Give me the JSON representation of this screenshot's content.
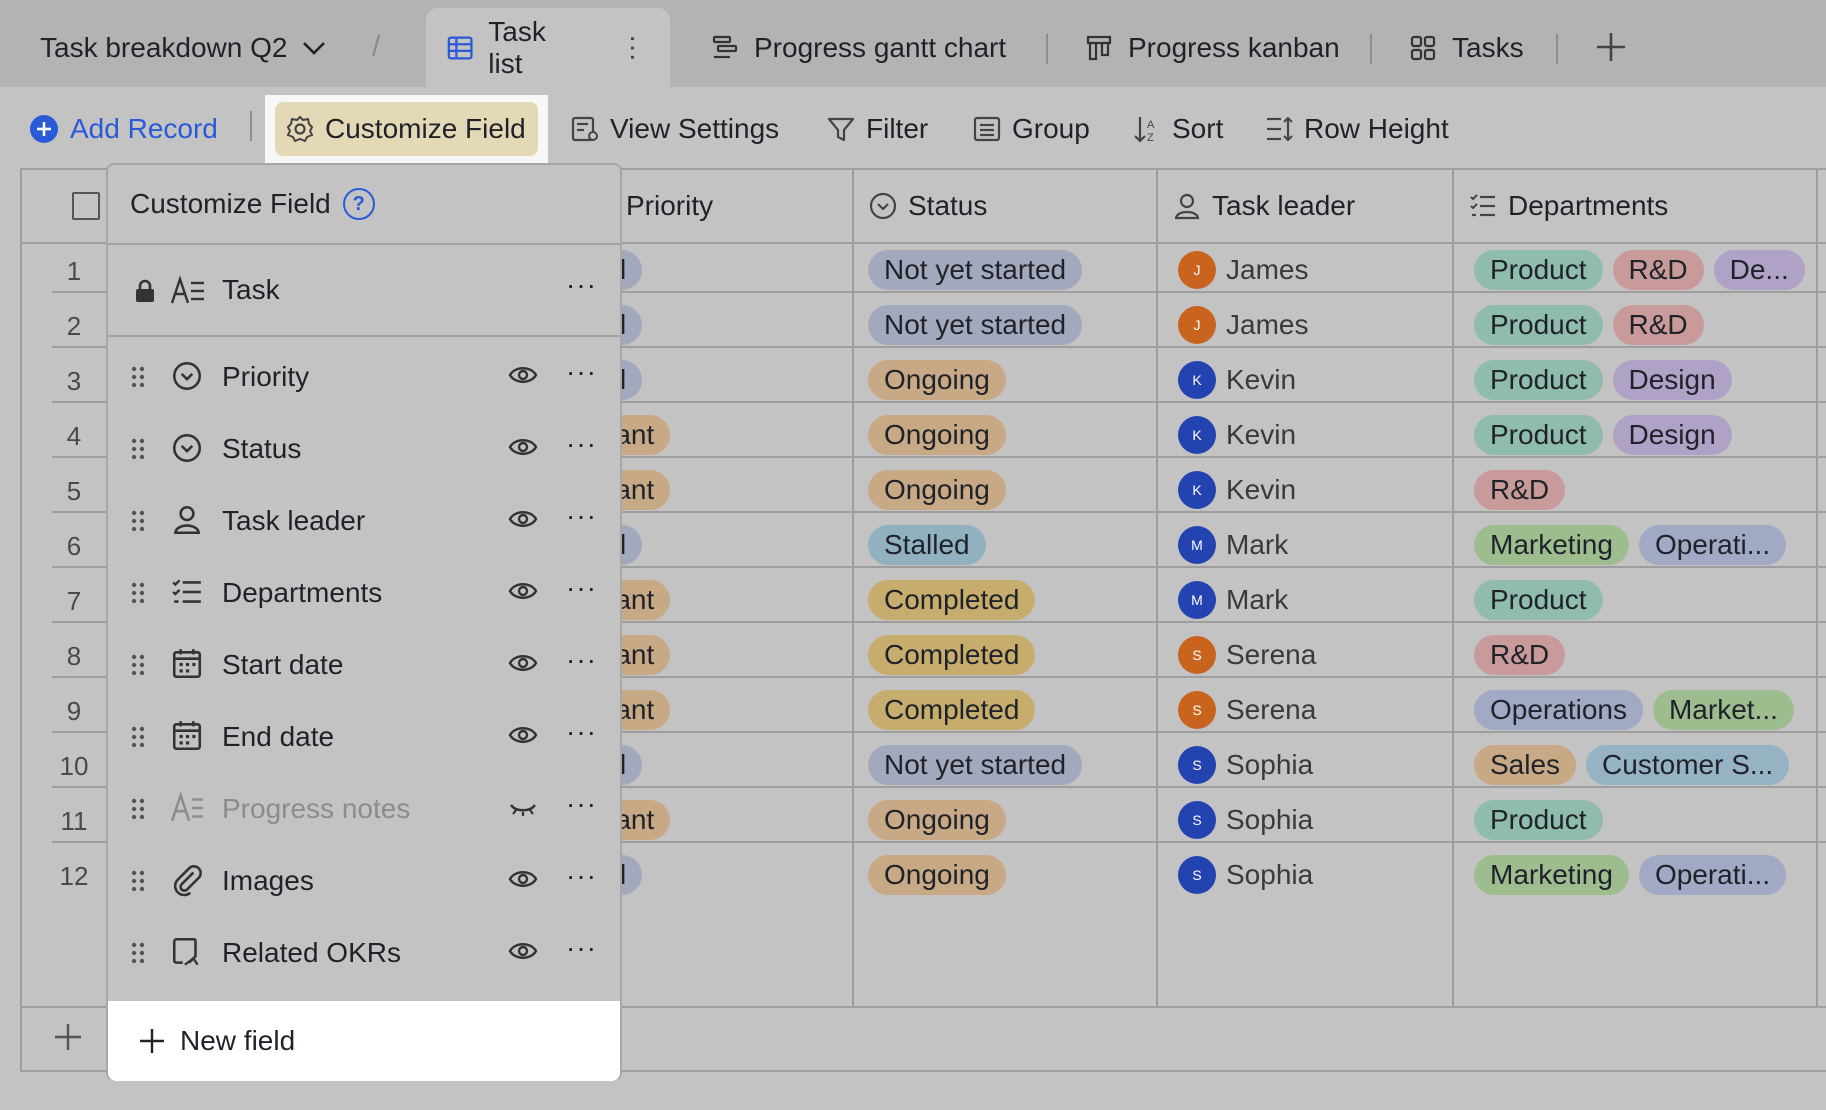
{
  "base": {
    "title": "Task breakdown Q2",
    "separator": "/"
  },
  "tabs": [
    {
      "label": "Task list",
      "icon": "grid-table-icon",
      "active": true
    },
    {
      "label": "Progress gantt chart",
      "icon": "gantt-icon"
    },
    {
      "label": "Progress kanban",
      "icon": "kanban-icon"
    },
    {
      "label": "Tasks",
      "icon": "gallery-icon"
    }
  ],
  "toolbar": {
    "add_record": "Add Record",
    "customize_field": "Customize Field",
    "view_settings": "View Settings",
    "filter": "Filter",
    "group": "Group",
    "sort": "Sort",
    "row_height": "Row Height"
  },
  "columns": {
    "priority": "Priority",
    "status": "Status",
    "task_leader": "Task leader",
    "departments": "Departments"
  },
  "rows": [
    {
      "num": "1",
      "priority": "Normal",
      "status": "Not yet started",
      "leader": "James",
      "initial": "J",
      "avatar": "#c8641e",
      "depts": [
        "Product",
        "R&D",
        "De..."
      ]
    },
    {
      "num": "2",
      "priority": "Normal",
      "status": "Not yet started",
      "leader": "James",
      "initial": "J",
      "avatar": "#c8641e",
      "depts": [
        "Product",
        "R&D"
      ]
    },
    {
      "num": "3",
      "priority": "Normal",
      "status": "Ongoing",
      "leader": "Kevin",
      "initial": "K",
      "avatar": "#2343b0",
      "depts": [
        "Product",
        "Design"
      ]
    },
    {
      "num": "4",
      "priority": "Important",
      "status": "Ongoing",
      "leader": "Kevin",
      "initial": "K",
      "avatar": "#2343b0",
      "depts": [
        "Product",
        "Design"
      ]
    },
    {
      "num": "5",
      "priority": "Important",
      "status": "Ongoing",
      "leader": "Kevin",
      "initial": "K",
      "avatar": "#2343b0",
      "depts": [
        "R&D"
      ]
    },
    {
      "num": "6",
      "priority": "Normal",
      "status": "Stalled",
      "leader": "Mark",
      "initial": "M",
      "avatar": "#2343b0",
      "depts": [
        "Marketing",
        "Operati..."
      ]
    },
    {
      "num": "7",
      "priority": "Important",
      "status": "Completed",
      "leader": "Mark",
      "initial": "M",
      "avatar": "#2343b0",
      "depts": [
        "Product"
      ]
    },
    {
      "num": "8",
      "priority": "Important",
      "status": "Completed",
      "leader": "Serena",
      "initial": "S",
      "avatar": "#c8641e",
      "depts": [
        "R&D"
      ]
    },
    {
      "num": "9",
      "priority": "Important",
      "status": "Completed",
      "leader": "Serena",
      "initial": "S",
      "avatar": "#c8641e",
      "depts": [
        "Operations",
        "Market..."
      ]
    },
    {
      "num": "10",
      "priority": "Normal",
      "status": "Not yet started",
      "leader": "Sophia",
      "initial": "S",
      "avatar": "#2343b0",
      "depts": [
        "Sales",
        "Customer S..."
      ]
    },
    {
      "num": "11",
      "priority": "Important",
      "status": "Ongoing",
      "leader": "Sophia",
      "initial": "S",
      "avatar": "#2343b0",
      "depts": [
        "Product"
      ]
    },
    {
      "num": "12",
      "priority": "Normal",
      "status": "Ongoing",
      "leader": "Sophia",
      "initial": "S",
      "avatar": "#2343b0",
      "depts": [
        "Marketing",
        "Operati..."
      ]
    }
  ],
  "panel": {
    "title": "Customize Field",
    "help": "?",
    "primary_field": "Task",
    "fields": [
      {
        "name": "Priority",
        "icon": "single-select-icon",
        "visible": true
      },
      {
        "name": "Status",
        "icon": "single-select-icon",
        "visible": true
      },
      {
        "name": "Task leader",
        "icon": "person-icon",
        "visible": true
      },
      {
        "name": "Departments",
        "icon": "multi-select-icon",
        "visible": true
      },
      {
        "name": "Start date",
        "icon": "calendar-icon",
        "visible": true
      },
      {
        "name": "End date",
        "icon": "calendar-icon",
        "visible": true
      },
      {
        "name": "Progress notes",
        "icon": "text-icon",
        "visible": false
      },
      {
        "name": "Images",
        "icon": "attachment-icon",
        "visible": true
      },
      {
        "name": "Related OKRs",
        "icon": "link-icon",
        "visible": true
      }
    ],
    "new_field": "New field"
  }
}
